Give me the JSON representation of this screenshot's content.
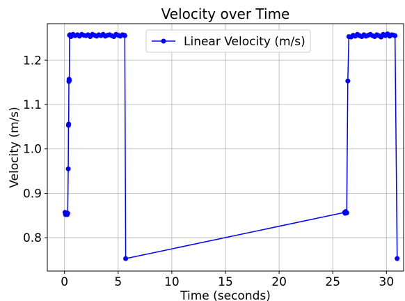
{
  "chart_data": {
    "type": "line",
    "title": "Velocity over Time",
    "xlabel": "Time (seconds)",
    "ylabel": "Velocity (m/s)",
    "xlim": [
      -1.6,
      31.6
    ],
    "ylim": [
      0.725,
      1.282
    ],
    "xticks": [
      0,
      5,
      10,
      15,
      20,
      25,
      30
    ],
    "yticks": [
      0.8,
      0.9,
      1.0,
      1.1,
      1.2
    ],
    "xtick_labels": [
      "0",
      "5",
      "10",
      "15",
      "20",
      "25",
      "30"
    ],
    "ytick_labels": [
      "0.8",
      "0.9",
      "1.0",
      "1.1",
      "1.2"
    ],
    "grid": true,
    "legend_position": "top-center",
    "series": [
      {
        "name": "Linear Velocity (m/s)",
        "color": "#0000ff",
        "marker": "circle",
        "x": [
          0.05,
          0.1,
          0.15,
          0.2,
          0.25,
          0.3,
          0.35,
          0.37,
          0.39,
          0.41,
          0.43,
          0.45,
          0.47,
          0.5,
          0.6,
          0.8,
          1.0,
          1.2,
          1.4,
          1.6,
          1.8,
          2.0,
          2.2,
          2.4,
          2.6,
          2.8,
          3.0,
          3.2,
          3.4,
          3.6,
          3.8,
          4.0,
          4.2,
          4.4,
          4.6,
          4.8,
          5.0,
          5.2,
          5.4,
          5.6,
          5.62,
          5.7,
          26.1,
          26.15,
          26.2,
          26.25,
          26.3,
          26.4,
          26.5,
          26.7,
          26.9,
          27.1,
          27.3,
          27.5,
          27.7,
          27.9,
          28.1,
          28.3,
          28.5,
          28.7,
          28.9,
          29.1,
          29.3,
          29.5,
          29.7,
          29.9,
          30.1,
          30.3,
          30.5,
          30.7,
          30.8,
          31.0
        ],
        "y": [
          0.857,
          0.852,
          0.856,
          0.853,
          0.852,
          0.855,
          0.955,
          1.053,
          1.056,
          1.152,
          1.157,
          1.154,
          1.256,
          1.257,
          1.253,
          1.258,
          1.255,
          1.257,
          1.254,
          1.258,
          1.256,
          1.255,
          1.257,
          1.253,
          1.258,
          1.256,
          1.254,
          1.257,
          1.255,
          1.258,
          1.254,
          1.256,
          1.257,
          1.255,
          1.253,
          1.258,
          1.256,
          1.254,
          1.257,
          1.256,
          1.255,
          0.753,
          0.857,
          0.855,
          0.859,
          0.857,
          0.856,
          1.153,
          1.253,
          1.252,
          1.256,
          1.254,
          1.258,
          1.255,
          1.253,
          1.257,
          1.254,
          1.256,
          1.258,
          1.255,
          1.253,
          1.257,
          1.255,
          1.252,
          1.258,
          1.255,
          1.259,
          1.254,
          1.257,
          1.256,
          1.255,
          0.753
        ]
      }
    ]
  }
}
